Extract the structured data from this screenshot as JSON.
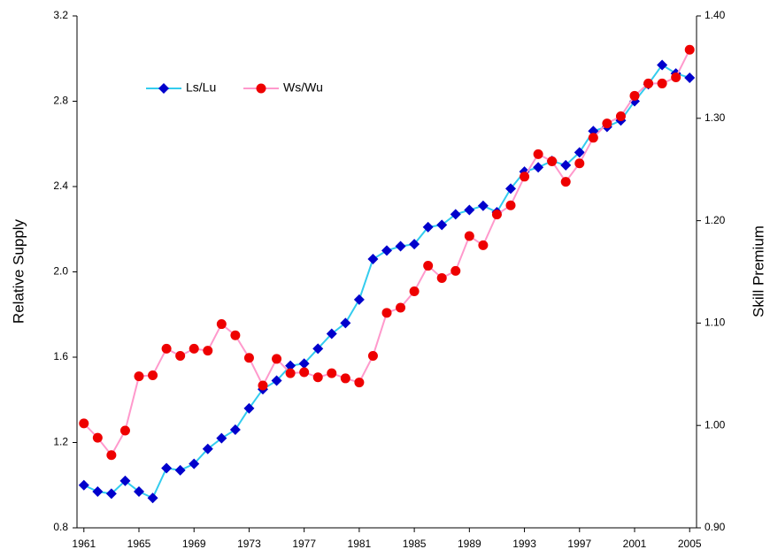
{
  "chart_data": {
    "type": "line",
    "y_label": "Relative Supply",
    "y2_label": "Skill Premium",
    "x": [
      1961,
      1962,
      1963,
      1964,
      1965,
      1966,
      1967,
      1968,
      1969,
      1970,
      1971,
      1972,
      1973,
      1974,
      1975,
      1976,
      1977,
      1978,
      1979,
      1980,
      1981,
      1982,
      1983,
      1984,
      1985,
      1986,
      1987,
      1988,
      1989,
      1990,
      1991,
      1992,
      1993,
      1994,
      1995,
      1996,
      1997,
      1998,
      1999,
      2000,
      2001,
      2002,
      2003,
      2004,
      2005
    ],
    "xlim": [
      1960.5,
      2005.5
    ],
    "xticks": [
      1961,
      1965,
      1969,
      1973,
      1977,
      1981,
      1985,
      1989,
      1993,
      1997,
      2001,
      2005
    ],
    "ylim": [
      0.8,
      3.2
    ],
    "yticks": [
      0.8,
      1.2,
      1.6,
      {
        "value": 2.0,
        "label": "2.0"
      },
      2.4,
      2.8,
      3.2
    ],
    "y2lim": [
      0.9,
      1.4
    ],
    "y2ticks": [
      {
        "value": 0.9,
        "label": "0.90"
      },
      {
        "value": 1.0,
        "label": "1.00"
      },
      {
        "value": 1.1,
        "label": "1.10"
      },
      {
        "value": 1.2,
        "label": "1.20"
      },
      {
        "value": 1.3,
        "label": "1.30"
      },
      {
        "value": 1.4,
        "label": "1.40"
      }
    ],
    "grid": false,
    "series": [
      {
        "name": "Ls/Lu",
        "color": "#33ccee",
        "marker": "diamond",
        "marker_color": "#0000cc",
        "values": [
          1.0,
          0.97,
          0.96,
          1.02,
          0.97,
          0.94,
          1.08,
          1.07,
          1.1,
          1.17,
          1.22,
          1.26,
          1.36,
          1.45,
          1.49,
          1.56,
          1.57,
          1.64,
          1.71,
          1.76,
          1.87,
          2.06,
          2.1,
          2.12,
          2.13,
          2.21,
          2.22,
          2.27,
          2.29,
          2.31,
          2.28,
          2.39,
          2.47,
          2.49,
          2.52,
          2.5,
          2.56,
          2.66,
          2.68,
          2.71,
          2.8,
          2.88,
          2.97,
          2.93,
          2.91
        ]
      },
      {
        "name": "Ws/Wu",
        "color": "#ff99cc",
        "marker": "circle",
        "marker_color": "#ee0000",
        "axis": "y2",
        "values": [
          1.002,
          0.988,
          0.971,
          0.995,
          1.048,
          1.049,
          1.075,
          1.068,
          1.075,
          1.073,
          1.099,
          1.088,
          1.066,
          1.039,
          1.065,
          1.051,
          1.052,
          1.047,
          1.051,
          1.046,
          1.042,
          1.068,
          1.11,
          1.115,
          1.131,
          1.156,
          1.144,
          1.151,
          1.185,
          1.176,
          1.206,
          1.215,
          1.243,
          1.265,
          1.258,
          1.238,
          1.256,
          1.281,
          1.295,
          1.302,
          1.322,
          1.334,
          1.334,
          1.34,
          1.367
        ]
      }
    ]
  }
}
